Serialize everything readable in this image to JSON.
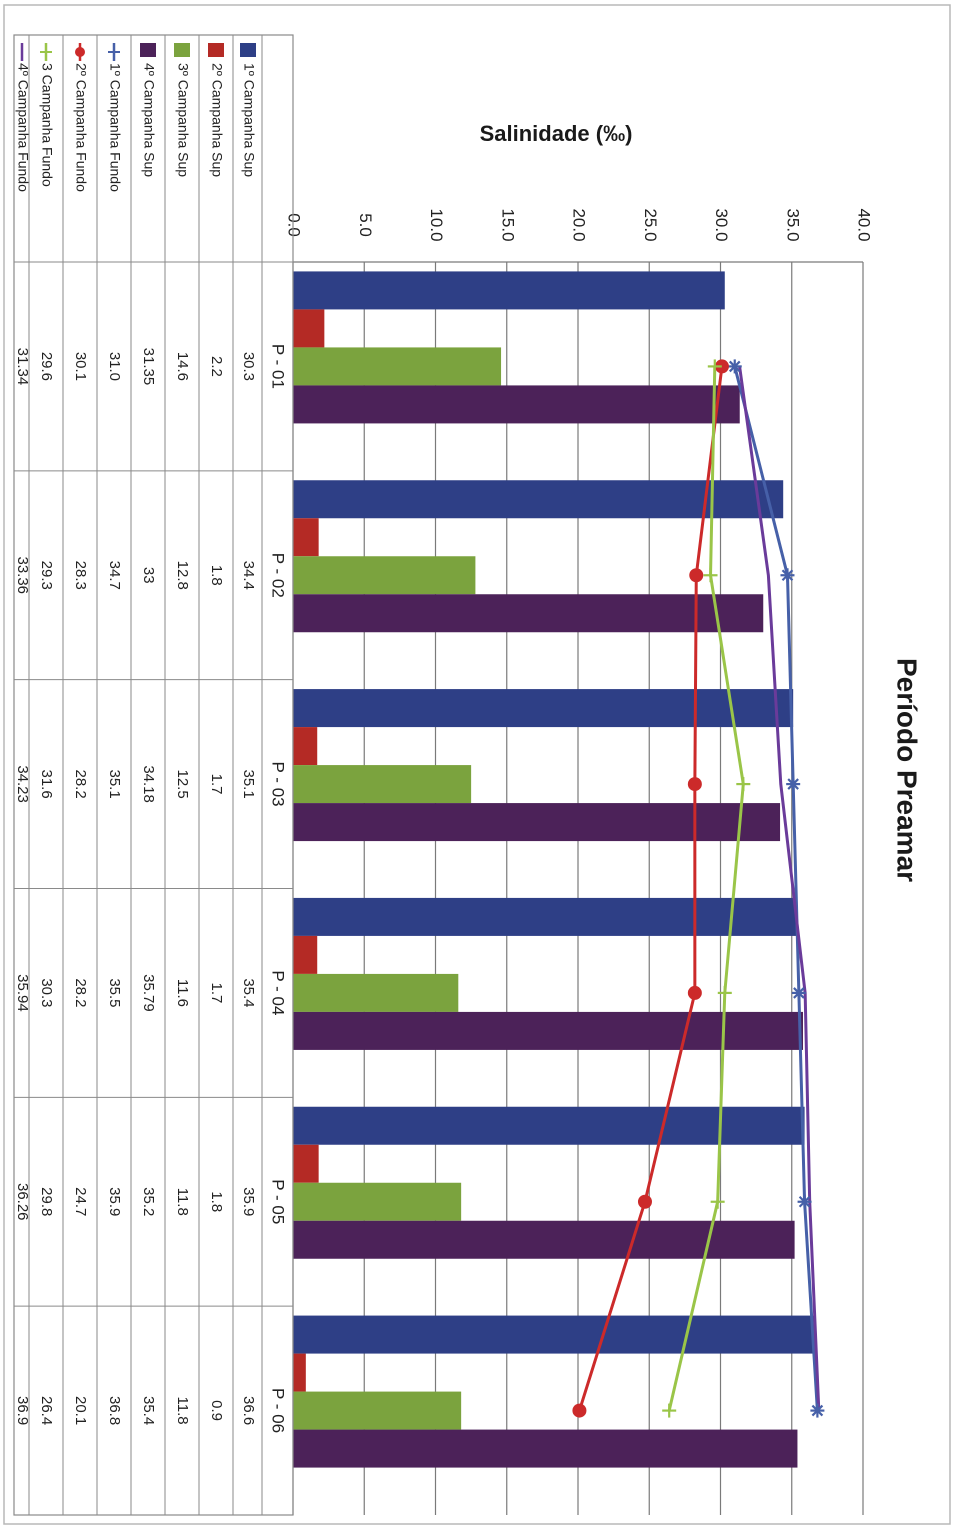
{
  "chart_data": {
    "type": "bar",
    "title": "Período Preamar",
    "ylabel": "Salinidade (‰)",
    "xlabel": "",
    "ylim": [
      0,
      40
    ],
    "y_ticks": [
      0,
      5,
      10,
      15,
      20,
      25,
      30,
      35,
      40
    ],
    "y_tick_labels": [
      "0.0",
      "5.0",
      "10.0",
      "15.0",
      "20.0",
      "25.0",
      "30.0",
      "35.0",
      "40.0"
    ],
    "orientation": "rotated 90° clockwise",
    "grid": true,
    "legend_placement": "data table below chart",
    "categories": [
      "P - 01",
      "P - 02",
      "P - 03",
      "P - 04",
      "P - 05",
      "P - 06"
    ],
    "series": [
      {
        "name": "1º Campanha Sup",
        "type": "bar",
        "color": "#2e3f86",
        "values": [
          30.3,
          34.4,
          35.1,
          35.4,
          35.9,
          36.6
        ],
        "labels": [
          "30.3",
          "34.4",
          "35.1",
          "35.4",
          "35.9",
          "36.6"
        ]
      },
      {
        "name": "2º Campanha Sup",
        "type": "bar",
        "color": "#b42a25",
        "values": [
          2.2,
          1.8,
          1.7,
          1.7,
          1.8,
          0.9
        ],
        "labels": [
          "2.2",
          "1.8",
          "1.7",
          "1.7",
          "1.8",
          "0.9"
        ]
      },
      {
        "name": "3º Campanha Sup",
        "type": "bar",
        "color": "#7ba33e",
        "values": [
          14.6,
          12.8,
          12.5,
          11.6,
          11.8,
          11.8
        ],
        "labels": [
          "14.6",
          "12.8",
          "12.5",
          "11.6",
          "11.8",
          "11.8"
        ]
      },
      {
        "name": "4º Campanha Sup",
        "type": "bar",
        "color": "#4c2259",
        "values": [
          31.35,
          33,
          34.18,
          35.79,
          35.2,
          35.4
        ],
        "labels": [
          "31.35",
          "33",
          "34.18",
          "35.79",
          "35.2",
          "35.4"
        ]
      },
      {
        "name": "1º Campanha Fundo",
        "type": "line",
        "marker": "star",
        "color": "#4660a8",
        "values": [
          31.0,
          34.7,
          35.1,
          35.5,
          35.9,
          36.8
        ],
        "labels": [
          "31.0",
          "34.7",
          "35.1",
          "35.5",
          "35.9",
          "36.8"
        ]
      },
      {
        "name": "2º Campanha Fundo",
        "type": "line",
        "marker": "circle",
        "color": "#cc2a2a",
        "values": [
          30.1,
          28.3,
          28.2,
          28.2,
          24.7,
          20.1
        ],
        "labels": [
          "30.1",
          "28.3",
          "28.2",
          "28.2",
          "24.7",
          "20.1"
        ]
      },
      {
        "name": "3 Campanha Fundo",
        "type": "line",
        "marker": "plus",
        "color": "#9ac548",
        "values": [
          29.6,
          29.3,
          31.6,
          30.3,
          29.8,
          26.4
        ],
        "labels": [
          "29.6",
          "29.3",
          "31.6",
          "30.3",
          "29.8",
          "26.4"
        ]
      },
      {
        "name": "4º Campanha Fundo",
        "type": "line",
        "marker": "none",
        "color": "#6a3b9a",
        "values": [
          31.34,
          33.36,
          34.23,
          35.94,
          36.26,
          36.9
        ],
        "labels": [
          "31.34",
          "33.36",
          "34.23",
          "35.94",
          "36.26",
          "36.9"
        ]
      }
    ]
  }
}
